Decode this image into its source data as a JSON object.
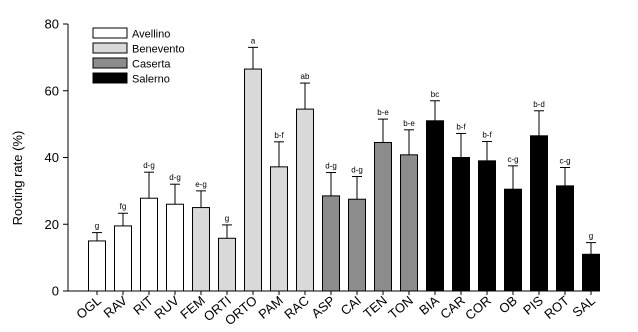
{
  "chart_data": {
    "type": "bar",
    "title": "",
    "xlabel": "",
    "ylabel": "Rooting rate (%)",
    "ylim": [
      0,
      80
    ],
    "yticks": [
      0,
      20,
      40,
      60,
      80
    ],
    "grid": false,
    "legend_position": "top-left",
    "error_bars": true,
    "groups": [
      {
        "name": "Avellino",
        "color": "#ffffff"
      },
      {
        "name": "Benevento",
        "color": "#d9d9d9"
      },
      {
        "name": "Caserta",
        "color": "#8c8c8c"
      },
      {
        "name": "Salerno",
        "color": "#000000"
      }
    ],
    "categories": [
      "OGL",
      "RAV",
      "RIT",
      "RUV",
      "FEM",
      "ORTI",
      "ORTO",
      "PAM",
      "RAC",
      "ASP",
      "CAI",
      "TEN",
      "TON",
      "BIA",
      "CAR",
      "COR",
      "OB",
      "PIS",
      "ROT",
      "SAL"
    ],
    "group_of": [
      0,
      0,
      0,
      0,
      1,
      1,
      1,
      1,
      1,
      2,
      2,
      2,
      2,
      3,
      3,
      3,
      3,
      3,
      3,
      3
    ],
    "values": [
      15,
      19.5,
      27.8,
      26,
      25,
      15.8,
      66.5,
      37.2,
      54.5,
      28.5,
      27.5,
      44.5,
      40.8,
      51,
      40,
      39,
      30.5,
      46.5,
      31.5,
      11
    ],
    "errors": [
      2.5,
      3.8,
      7.8,
      6,
      5,
      4,
      6.5,
      7.5,
      7.8,
      7,
      6.8,
      7,
      7.5,
      6,
      7.2,
      5.8,
      7,
      7.5,
      5.5,
      3.5
    ],
    "significance": [
      "g",
      "fg",
      "d-g",
      "d-g",
      "e-g",
      "g",
      "a",
      "b-f",
      "ab",
      "d-g",
      "d-g",
      "b-e",
      "b-e",
      "bc",
      "b-f",
      "b-f",
      "c-g",
      "b-d",
      "c-g",
      "g"
    ]
  }
}
